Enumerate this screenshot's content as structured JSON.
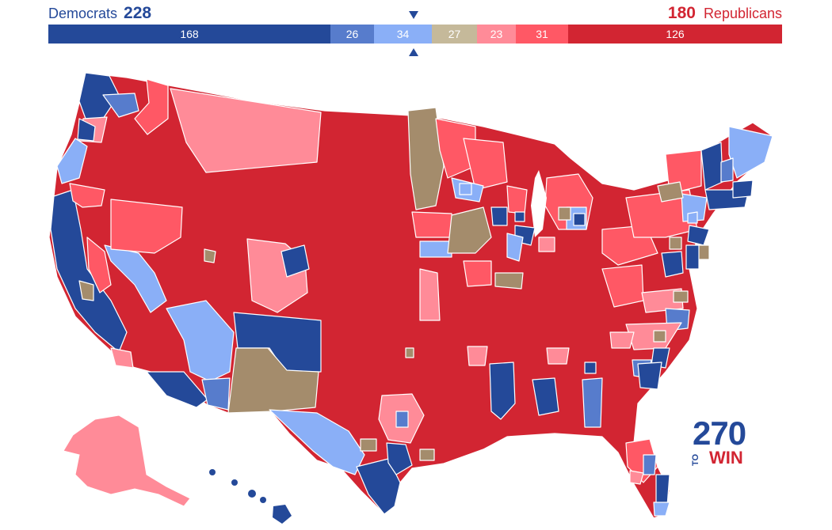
{
  "header": {
    "dem_label": "Democrats",
    "dem_total": "228",
    "rep_total": "180",
    "rep_label": "Republicans"
  },
  "seat_bar": [
    {
      "category": "safe-dem",
      "value": "168",
      "color": "#244999"
    },
    {
      "category": "likely-dem",
      "value": "26",
      "color": "#577ccc"
    },
    {
      "category": "lean-dem",
      "value": "34",
      "color": "#8aaff7"
    },
    {
      "category": "tossup",
      "value": "27",
      "color": "#c5b99a"
    },
    {
      "category": "lean-rep",
      "value": "23",
      "color": "#ff8b98"
    },
    {
      "category": "likely-rep",
      "value": "31",
      "color": "#ff5865"
    },
    {
      "category": "safe-rep",
      "value": "126",
      "color": "#d22532"
    }
  ],
  "logo": {
    "number": "270",
    "to": "TO",
    "win": "WIN"
  },
  "colors": {
    "safe_dem": "#244999",
    "likely_dem": "#577ccc",
    "lean_dem": "#8aaff7",
    "tossup": "#a48c6c",
    "lean_rep": "#ff8b98",
    "likely_rep": "#ff5865",
    "safe_rep": "#d22532"
  }
}
